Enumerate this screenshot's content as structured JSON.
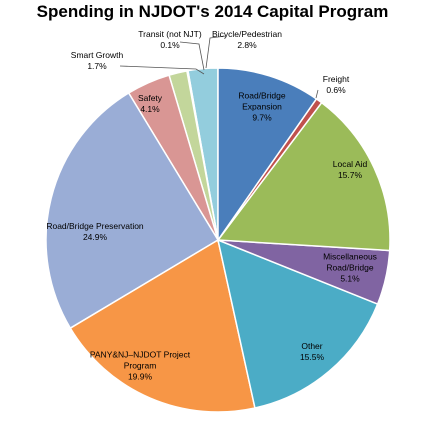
{
  "chart_data": {
    "type": "pie",
    "title": "Spending in NJDOT's 2014 Capital Program",
    "categories": [
      "Road/Bridge Expansion",
      "Freight",
      "Local Aid",
      "Miscellaneous Road/Bridge",
      "Other",
      "PANY&NJ–NJDOT Project Program",
      "Road/Bridge Preservation",
      "Safety",
      "Smart Growth",
      "Transit (not NJT)",
      "Bicycle/Pedestrian"
    ],
    "values": [
      9.7,
      0.6,
      15.7,
      5.1,
      15.5,
      19.9,
      24.9,
      4.1,
      1.7,
      0.1,
      2.8
    ],
    "value_labels": [
      "9.7%",
      "0.6%",
      "15.7%",
      "5.1%",
      "15.5%",
      "19.9%",
      "24.9%",
      "4.1%",
      "1.7%",
      "0.1%",
      "2.8%"
    ],
    "colors": [
      "#4a7ebb",
      "#c0504d",
      "#9bbb59",
      "#8064a2",
      "#4bacc6",
      "#f79646",
      "#9aadd6",
      "#d99694",
      "#c3d69b",
      "#b3a2c7",
      "#93cddd"
    ]
  }
}
